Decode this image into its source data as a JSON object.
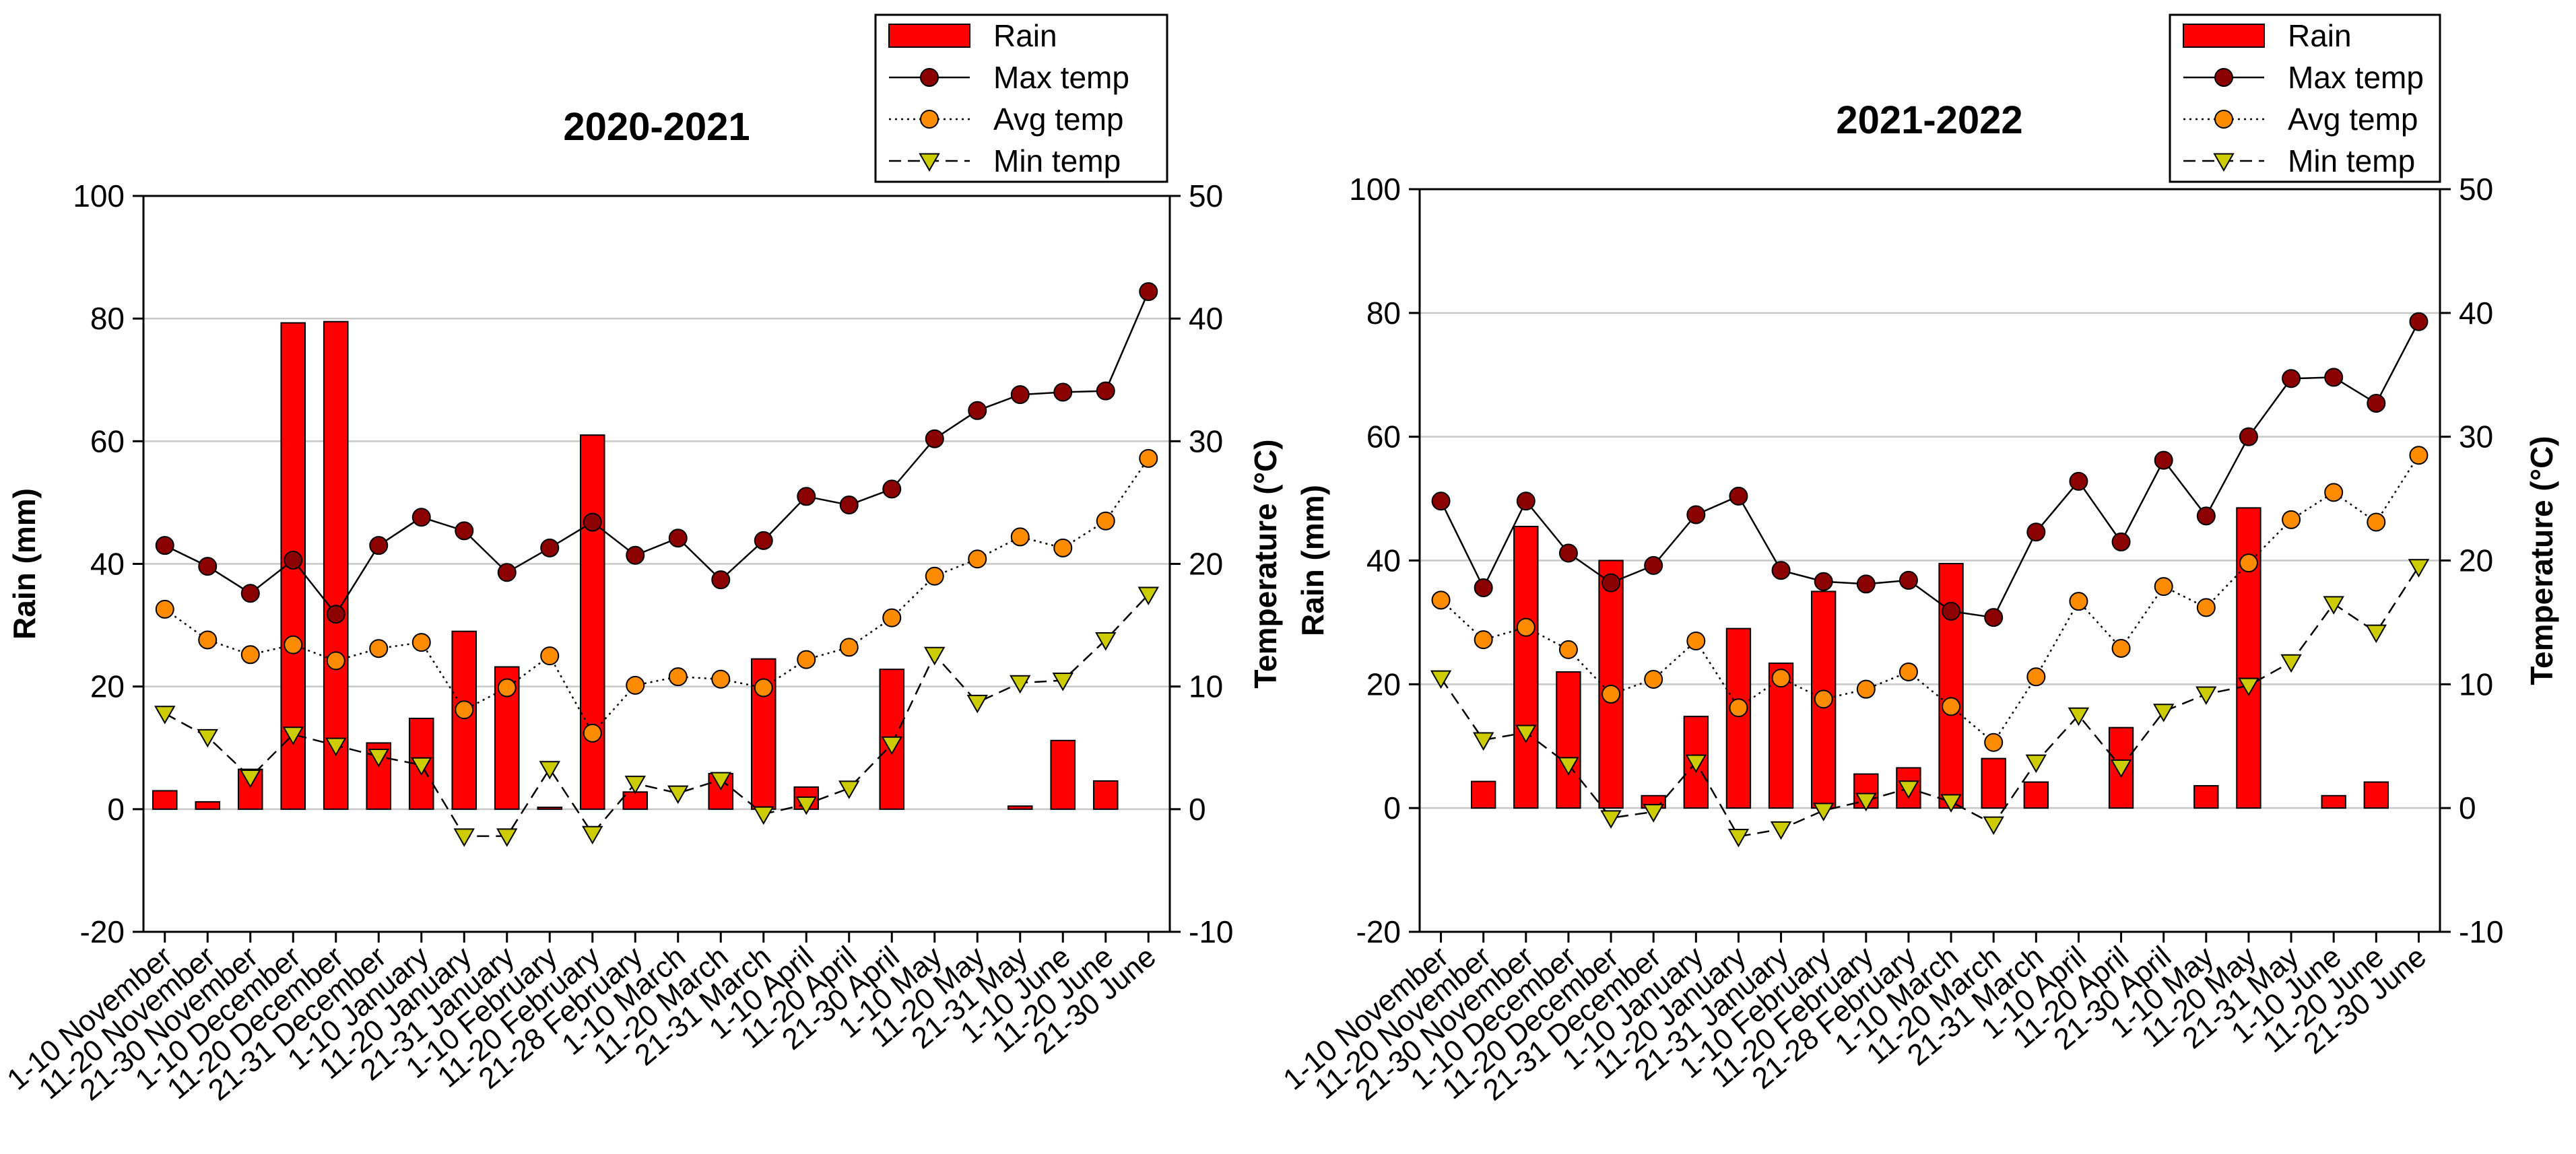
{
  "colors": {
    "rain": "#ff0000",
    "max_temp": "#8b0000",
    "avg_temp": "#ff8c00",
    "min_temp": "#cccc00",
    "grid": "#c8c8c8",
    "text": "#000000"
  },
  "chart_data": [
    {
      "type": "bar",
      "title": "2020-2021",
      "xlabel": "",
      "ylabel": "Rain (mm)",
      "y2label": "Temperature (°C)",
      "ylim": [
        -20,
        100
      ],
      "y2lim": [
        -10,
        50
      ],
      "yticks": [
        -20,
        0,
        20,
        40,
        60,
        80,
        100
      ],
      "y2ticks": [
        -10,
        0,
        10,
        20,
        30,
        40,
        50
      ],
      "grid": true,
      "legend_position": "top-right",
      "legend": [
        "Rain",
        "Max temp",
        "Avg temp",
        "Min temp"
      ],
      "categories": [
        "1-10 November",
        "11-20 November",
        "21-30 November",
        "1-10 December",
        "11-20 December",
        "21-31 December",
        "1-10 January",
        "11-20 January",
        "21-31 January",
        "1-10 February",
        "11-20 February",
        "21-28 February",
        "1-10 March",
        "11-20 March",
        "21-31 March",
        "1-10 April",
        "11-20 April",
        "21-30 April",
        "1-10 May",
        "11-20 May",
        "21-31 May",
        "1-10 June",
        "11-20 June",
        "21-30 June"
      ],
      "series": [
        {
          "name": "Rain",
          "axis": "left",
          "style": "bar",
          "values": [
            3,
            1.2,
            6.5,
            79.3,
            79.5,
            10.8,
            14.8,
            29,
            23.2,
            0.3,
            61,
            2.8,
            0,
            5.8,
            24.5,
            3.6,
            0,
            22.8,
            0,
            0,
            0.5,
            11.2,
            4.6,
            0
          ]
        },
        {
          "name": "Max temp",
          "axis": "right",
          "style": "line-circle",
          "values": [
            21.5,
            19.8,
            17.6,
            20.3,
            15.9,
            21.5,
            23.8,
            22.7,
            19.3,
            21.3,
            23.4,
            20.7,
            22.1,
            18.7,
            21.9,
            25.5,
            24.8,
            26.1,
            30.2,
            32.5,
            33.8,
            34,
            34.1,
            42.2
          ]
        },
        {
          "name": "Avg temp",
          "axis": "right",
          "style": "dotted-circle",
          "values": [
            16.3,
            13.8,
            12.6,
            13.4,
            12.1,
            13.1,
            13.6,
            8.1,
            9.9,
            12.5,
            6.2,
            10.1,
            10.8,
            10.6,
            9.9,
            12.2,
            13.2,
            15.6,
            19,
            20.4,
            22.2,
            21.3,
            23.5,
            28.6
          ]
        },
        {
          "name": "Min temp",
          "axis": "right",
          "style": "dashed-triangle",
          "values": [
            7.8,
            5.9,
            2.6,
            6.1,
            5.2,
            4.3,
            3.6,
            -2.2,
            -2.2,
            3.3,
            -2,
            2.1,
            1.3,
            2.4,
            -0.4,
            0.4,
            1.7,
            5.3,
            12.6,
            8.7,
            10.3,
            10.5,
            13.8,
            17.5
          ]
        }
      ]
    },
    {
      "type": "bar",
      "title": "2021-2022",
      "xlabel": "",
      "ylabel": "Rain (mm)",
      "y2label": "Temperature (°C)",
      "ylim": [
        -20,
        100
      ],
      "y2lim": [
        -10,
        50
      ],
      "yticks": [
        -20,
        0,
        20,
        40,
        60,
        80,
        100
      ],
      "y2ticks": [
        -10,
        0,
        10,
        20,
        30,
        40,
        50
      ],
      "grid": true,
      "legend_position": "top-right",
      "legend": [
        "Rain",
        "Max temp",
        "Avg temp",
        "Min temp"
      ],
      "categories": [
        "1-10 November",
        "11-20 November",
        "21-30 November",
        "1-10 December",
        "11-20 December",
        "21-31 December",
        "1-10 January",
        "11-20 January",
        "21-31 January",
        "1-10 February",
        "11-20 February",
        "21-28 February",
        "1-10 March",
        "11-20 March",
        "21-31 March",
        "1-10 April",
        "11-20 April",
        "21-30 April",
        "1-10 May",
        "11-20 May",
        "21-31 May",
        "1-10 June",
        "11-20 June",
        "21-30 June"
      ],
      "series": [
        {
          "name": "Rain",
          "axis": "left",
          "style": "bar",
          "values": [
            0,
            4.3,
            45.5,
            22,
            40,
            2,
            14.8,
            29,
            23.4,
            35,
            5.5,
            6.5,
            39.5,
            8,
            4.2,
            0,
            13,
            0,
            3.6,
            48.5,
            0,
            2,
            4.2,
            0
          ]
        },
        {
          "name": "Max temp",
          "axis": "right",
          "style": "line-circle",
          "values": [
            24.8,
            17.8,
            24.8,
            20.6,
            18.2,
            19.6,
            23.7,
            25.2,
            19.2,
            18.3,
            18.1,
            18.4,
            15.9,
            15.4,
            22.3,
            26.4,
            21.5,
            28.1,
            23.6,
            30,
            34.7,
            34.8,
            32.7,
            39.3
          ]
        },
        {
          "name": "Avg temp",
          "axis": "right",
          "style": "dotted-circle",
          "values": [
            16.8,
            13.6,
            14.6,
            12.8,
            9.2,
            10.4,
            13.5,
            8.1,
            10.5,
            8.8,
            9.6,
            11,
            8.2,
            5.3,
            10.6,
            16.7,
            12.9,
            17.9,
            16.2,
            19.8,
            23.3,
            25.5,
            23.1,
            28.5
          ]
        },
        {
          "name": "Min temp",
          "axis": "right",
          "style": "dashed-triangle",
          "values": [
            10.5,
            5.5,
            6.1,
            3.5,
            -0.8,
            -0.3,
            3.7,
            -2.3,
            -1.7,
            -0.2,
            0.6,
            1.6,
            0.5,
            -1.3,
            3.7,
            7.5,
            3.3,
            7.8,
            9.2,
            9.9,
            11.8,
            16.5,
            14.2,
            19.5
          ]
        }
      ]
    }
  ]
}
